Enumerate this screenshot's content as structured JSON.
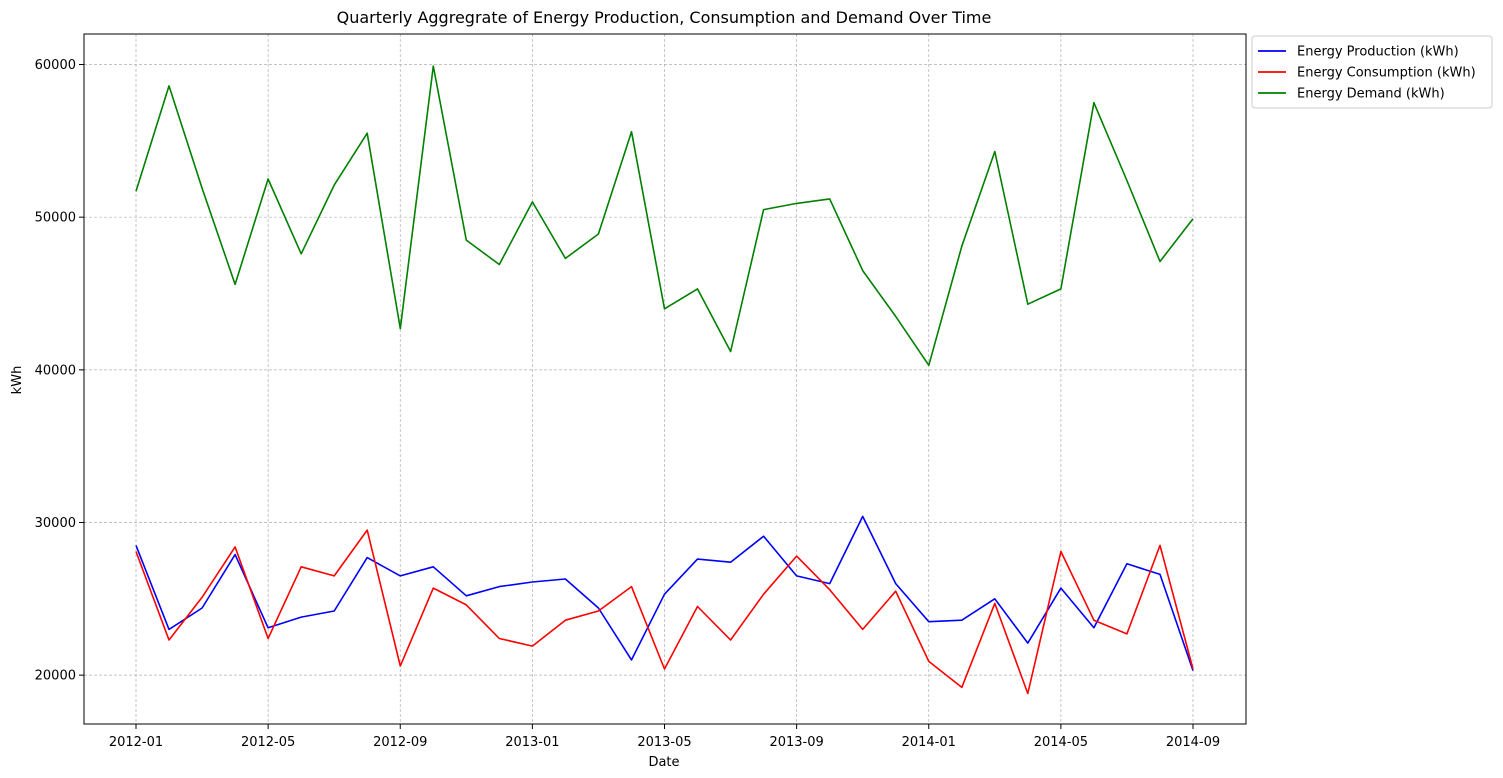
{
  "chart_data": {
    "type": "line",
    "title": "Quarterly Aggregrate of Energy Production, Consumption and Demand Over Time",
    "xlabel": "Date",
    "ylabel": "kWh",
    "x": [
      "2012-01",
      "2012-02",
      "2012-03",
      "2012-04",
      "2012-05",
      "2012-06",
      "2012-07",
      "2012-08",
      "2012-09",
      "2012-10",
      "2012-11",
      "2012-12",
      "2013-01",
      "2013-02",
      "2013-03",
      "2013-04",
      "2013-05",
      "2013-06",
      "2013-07",
      "2013-08",
      "2013-09",
      "2013-10",
      "2013-11",
      "2013-12",
      "2014-01",
      "2014-02",
      "2014-03",
      "2014-04",
      "2014-05",
      "2014-06",
      "2014-07",
      "2014-08",
      "2014-09"
    ],
    "x_ticks": [
      "2012-01",
      "2012-05",
      "2012-09",
      "2013-01",
      "2013-05",
      "2013-09",
      "2014-01",
      "2014-05",
      "2014-09"
    ],
    "y_ticks": [
      20000,
      30000,
      40000,
      50000,
      60000
    ],
    "ylim": [
      16800,
      62000
    ],
    "grid": true,
    "legend_position": "outside top-right",
    "series": [
      {
        "name": "Energy Production (kWh)",
        "color": "#0000ff",
        "values": [
          28500,
          23000,
          24400,
          27900,
          23100,
          23800,
          24200,
          27700,
          26500,
          27100,
          25200,
          25800,
          26100,
          26300,
          24400,
          21000,
          25300,
          27600,
          27400,
          29100,
          26500,
          26000,
          30400,
          26000,
          23500,
          23600,
          25000,
          22100,
          25700,
          23100,
          27300,
          26600,
          20300
        ]
      },
      {
        "name": "Energy Consumption (kWh)",
        "color": "#ff0000",
        "values": [
          28100,
          22300,
          25100,
          28400,
          22400,
          27100,
          26500,
          29500,
          20600,
          25700,
          24600,
          22400,
          21900,
          23600,
          24200,
          25800,
          20400,
          24500,
          22300,
          25300,
          27800,
          25600,
          23000,
          25500,
          20900,
          19200,
          24700,
          18800,
          28100,
          23600,
          22700,
          28500,
          20400
        ]
      },
      {
        "name": "Energy Demand (kWh)",
        "color": "#008000",
        "values": [
          51700,
          58600,
          51900,
          45600,
          52500,
          47600,
          52100,
          55500,
          42700,
          59900,
          48500,
          46900,
          51000,
          47300,
          48900,
          55600,
          44000,
          45300,
          41200,
          50500,
          50900,
          51200,
          46500,
          43500,
          40300,
          48100,
          54300,
          44300,
          45300,
          57500,
          52400,
          47100,
          49900
        ]
      }
    ]
  }
}
